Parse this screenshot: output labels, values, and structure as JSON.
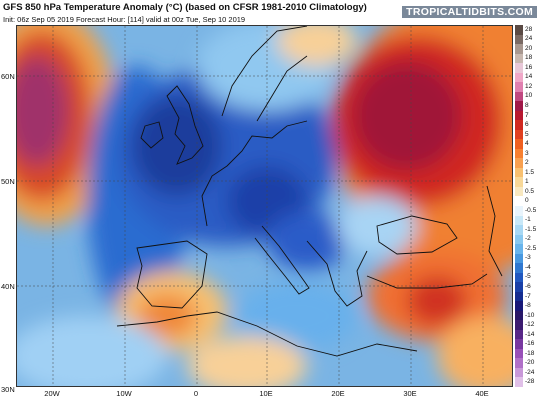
{
  "header": {
    "title": "GFS 850 hPa Temperature Anomaly (°C) (based on CFSR 1981-2010 Climatology)",
    "subtitle": "Init: 06z Sep 05 2019   Forecast Hour: [114]   valid at 00z Tue, Sep 10 2019",
    "brand": "TROPICALTIDBITS.COM"
  },
  "axes": {
    "lat_labels": [
      "60N",
      "50N",
      "40N",
      "30N"
    ],
    "lon_labels": [
      "20W",
      "10W",
      "0",
      "10E",
      "20E",
      "30E",
      "40E"
    ]
  },
  "colorbar": {
    "labels": [
      "28",
      "24",
      "20",
      "18",
      "16",
      "14",
      "12",
      "10",
      "8",
      "7",
      "6",
      "5",
      "4",
      "3",
      "2",
      "1.5",
      "1",
      "0.5",
      "0",
      "-0.5",
      "-1",
      "-1.5",
      "-2",
      "-2.5",
      "-3",
      "-4",
      "-5",
      "-6",
      "-7",
      "-8",
      "-10",
      "-12",
      "-14",
      "-16",
      "-18",
      "-20",
      "-24",
      "-28"
    ],
    "colors": [
      "#5a4a44",
      "#7a6a64",
      "#a89890",
      "#c8b8b0",
      "#e8c8d8",
      "#f0a8c8",
      "#e080b0",
      "#c04880",
      "#a01848",
      "#b81830",
      "#d02820",
      "#e04020",
      "#f06020",
      "#f88030",
      "#f8a050",
      "#f8c070",
      "#f8d898",
      "#f8e8c0",
      "#ffffff",
      "#e8f4fc",
      "#c8e8f8",
      "#a8d8f4",
      "#88c8f0",
      "#68b4ec",
      "#4898e0",
      "#3078d0",
      "#2058c0",
      "#1840a8",
      "#142c90",
      "#181878",
      "#281868",
      "#3c1c70",
      "#582888",
      "#7838a0",
      "#9850b8",
      "#b070c8",
      "#c898d8",
      "#e0c0e8"
    ]
  }
}
